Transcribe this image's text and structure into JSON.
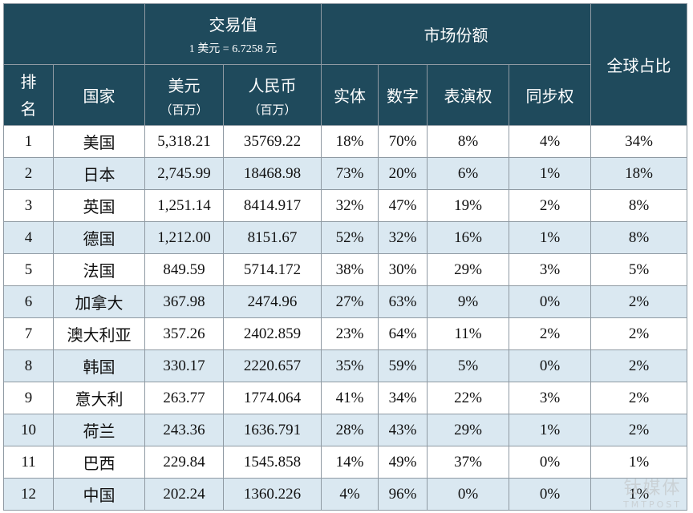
{
  "header": {
    "trade_value": "交易值",
    "exchange_rate": "1 美元 = 6.7258 元",
    "market_share": "市场份额",
    "global_share": "全球占比",
    "rank_line1": "排",
    "rank_line2": "名",
    "country": "国家",
    "usd": "美元",
    "usd_unit": "（百万）",
    "rmb": "人民币",
    "rmb_unit": "（百万）",
    "physical": "实体",
    "digital": "数字",
    "performance": "表演权",
    "sync": "同步权"
  },
  "rows": [
    {
      "rank": "1",
      "country": "美国",
      "usd": "5,318.21",
      "rmb": "35769.22",
      "physical": "18%",
      "digital": "70%",
      "performance": "8%",
      "sync": "4%",
      "global": "34%"
    },
    {
      "rank": "2",
      "country": "日本",
      "usd": "2,745.99",
      "rmb": "18468.98",
      "physical": "73%",
      "digital": "20%",
      "performance": "6%",
      "sync": "1%",
      "global": "18%"
    },
    {
      "rank": "3",
      "country": "英国",
      "usd": "1,251.14",
      "rmb": "8414.917",
      "physical": "32%",
      "digital": "47%",
      "performance": "19%",
      "sync": "2%",
      "global": "8%"
    },
    {
      "rank": "4",
      "country": "德国",
      "usd": "1,212.00",
      "rmb": "8151.67",
      "physical": "52%",
      "digital": "32%",
      "performance": "16%",
      "sync": "1%",
      "global": "8%"
    },
    {
      "rank": "5",
      "country": "法国",
      "usd": "849.59",
      "rmb": "5714.172",
      "physical": "38%",
      "digital": "30%",
      "performance": "29%",
      "sync": "3%",
      "global": "5%"
    },
    {
      "rank": "6",
      "country": "加拿大",
      "usd": "367.98",
      "rmb": "2474.96",
      "physical": "27%",
      "digital": "63%",
      "performance": "9%",
      "sync": "0%",
      "global": "2%"
    },
    {
      "rank": "7",
      "country": "澳大利亚",
      "usd": "357.26",
      "rmb": "2402.859",
      "physical": "23%",
      "digital": "64%",
      "performance": "11%",
      "sync": "2%",
      "global": "2%"
    },
    {
      "rank": "8",
      "country": "韩国",
      "usd": "330.17",
      "rmb": "2220.657",
      "physical": "35%",
      "digital": "59%",
      "performance": "5%",
      "sync": "0%",
      "global": "2%"
    },
    {
      "rank": "9",
      "country": "意大利",
      "usd": "263.77",
      "rmb": "1774.064",
      "physical": "41%",
      "digital": "34%",
      "performance": "22%",
      "sync": "3%",
      "global": "2%"
    },
    {
      "rank": "10",
      "country": "荷兰",
      "usd": "243.36",
      "rmb": "1636.791",
      "physical": "28%",
      "digital": "43%",
      "performance": "29%",
      "sync": "1%",
      "global": "2%"
    },
    {
      "rank": "11",
      "country": "巴西",
      "usd": "229.84",
      "rmb": "1545.858",
      "physical": "14%",
      "digital": "49%",
      "performance": "37%",
      "sync": "0%",
      "global": "1%"
    },
    {
      "rank": "12",
      "country": "中国",
      "usd": "202.24",
      "rmb": "1360.226",
      "physical": "4%",
      "digital": "96%",
      "performance": "0%",
      "sync": "0%",
      "global": "1%"
    }
  ],
  "watermark": {
    "line1": "钛媒体",
    "line2": "TMTPOST"
  },
  "colors": {
    "header_bg": "#1f4a5c",
    "alt_row_bg": "#dae8f1",
    "border": "#8f9aa3"
  }
}
